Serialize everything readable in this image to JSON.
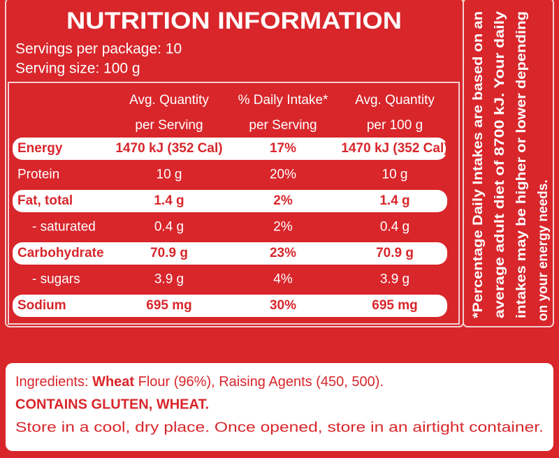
{
  "header": {
    "title": "NUTRITION INFORMATION",
    "servings": "Servings per package: 10",
    "serving_size": "Serving size: 100 g"
  },
  "table": {
    "columns": [
      [
        "Avg. Quantity",
        "per Serving"
      ],
      [
        "% Daily Intake*",
        "per Serving"
      ],
      [
        "Avg. Quantity",
        "per 100 g"
      ]
    ],
    "rows": [
      [
        "Energy",
        "1470 kJ (352 Cal)",
        "17%",
        "1470 kJ (352 Cal)"
      ],
      [
        "Protein",
        "10 g",
        "20%",
        "10 g"
      ],
      [
        "Fat, total",
        "1.4 g",
        "2%",
        "1.4 g"
      ],
      [
        "- saturated",
        "0.4 g",
        "2%",
        "0.4 g"
      ],
      [
        "Carbohydrate",
        "70.9 g",
        "23%",
        "70.9 g"
      ],
      [
        "- sugars",
        "3.9 g",
        "4%",
        "3.9 g"
      ],
      [
        "Sodium",
        "695 mg",
        "30%",
        "695 mg"
      ]
    ]
  },
  "footnote": [
    "*Percentage Daily Intakes are based on an",
    "average adult diet of 8700 kJ. Your daily",
    "intakes may be higher or lower depending",
    "on your energy needs."
  ],
  "ingredients": {
    "label": "Ingredients:",
    "bold": "Wheat",
    "rest": "Flour (96%), Raising Agents (450, 500)."
  },
  "allergens": "CONTAINS GLUTEN, WHEAT.",
  "storage": "Store in a cool, dry place. Once opened, store in an airtight container."
}
